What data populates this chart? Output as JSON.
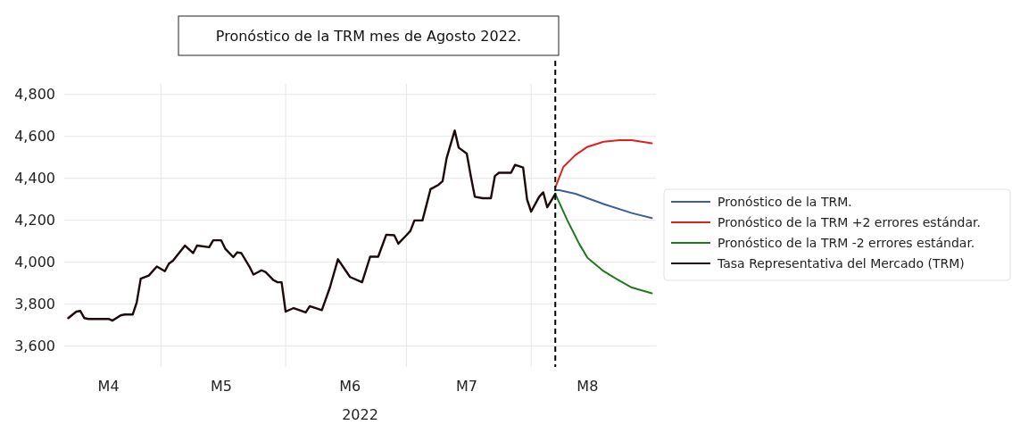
{
  "chart_data": {
    "type": "line",
    "title": "Pronóstico de la TRM mes de Agosto 2022.",
    "xlabel": "2022",
    "xlim": [
      "2022-04-07",
      "2022-09-01"
    ],
    "xticks": [
      {
        "value": "2022-04-18",
        "label": "M4"
      },
      {
        "value": "2022-05-01",
        "label": null
      },
      {
        "value": "2022-05-16",
        "label": "M5"
      },
      {
        "value": "2022-06-01",
        "label": null
      },
      {
        "value": "2022-06-17",
        "label": "M6"
      },
      {
        "value": "2022-07-01",
        "label": null
      },
      {
        "value": "2022-07-16",
        "label": "M7"
      },
      {
        "value": "2022-08-01",
        "label": null
      },
      {
        "value": "2022-08-15",
        "label": "M8"
      }
    ],
    "ylim": [
      3500,
      4850
    ],
    "yticks": [
      {
        "value": 3600,
        "label": "3,600"
      },
      {
        "value": 3800,
        "label": "3,800"
      },
      {
        "value": 4000,
        "label": "4,000"
      },
      {
        "value": 4200,
        "label": "4,200"
      },
      {
        "value": 4400,
        "label": "4,400"
      },
      {
        "value": 4600,
        "label": "4,600"
      },
      {
        "value": 4800,
        "label": "4,800"
      }
    ],
    "grid": true,
    "legend": "right",
    "line_style": "solid",
    "ref_lines": [
      {
        "axis": "x",
        "value": "2022-08-07",
        "color": "#000000",
        "line_style": "dashed"
      }
    ],
    "series": [
      {
        "name": "Pronóstico de la TRM.",
        "color": "#3a5fa0",
        "x": [
          "2022-08-07",
          "2022-08-08",
          "2022-08-12",
          "2022-08-19",
          "2022-08-26",
          "2022-08-31"
        ],
        "values": [
          4343,
          4343,
          4326,
          4277,
          4234,
          4210
        ]
      },
      {
        "name": "Pronóstico de la TRM +2 errores estándar.",
        "color": "#e0201e",
        "x": [
          "2022-08-07",
          "2022-08-09",
          "2022-08-12",
          "2022-08-15",
          "2022-08-19",
          "2022-08-23",
          "2022-08-26",
          "2022-08-31"
        ],
        "values": [
          4355,
          4454,
          4511,
          4550,
          4574,
          4582,
          4582,
          4567
        ]
      },
      {
        "name": "Pronóstico de la TRM -2 errores estándar.",
        "color": "#1e7a1e",
        "x": [
          "2022-08-07",
          "2022-08-10",
          "2022-08-13",
          "2022-08-15",
          "2022-08-19",
          "2022-08-22",
          "2022-08-26",
          "2022-08-31"
        ],
        "values": [
          4326,
          4199,
          4085,
          4021,
          3957,
          3922,
          3879,
          3851
        ]
      },
      {
        "name": "Tasa Representativa del Mercado (TRM)",
        "color": "#1a0a0a",
        "x": [
          "2022-04-08",
          "2022-04-10",
          "2022-04-11",
          "2022-04-12",
          "2022-04-13",
          "2022-04-18",
          "2022-04-19",
          "2022-04-21",
          "2022-04-22",
          "2022-04-24",
          "2022-04-25",
          "2022-04-26",
          "2022-04-28",
          "2022-04-30",
          "2022-05-02",
          "2022-05-03",
          "2022-05-04",
          "2022-05-07",
          "2022-05-09",
          "2022-05-10",
          "2022-05-13",
          "2022-05-14",
          "2022-05-16",
          "2022-05-17",
          "2022-05-19",
          "2022-05-20",
          "2022-05-21",
          "2022-05-23",
          "2022-05-24",
          "2022-05-26",
          "2022-05-27",
          "2022-05-29",
          "2022-05-30",
          "2022-05-31",
          "2022-06-01",
          "2022-06-03",
          "2022-06-06",
          "2022-06-07",
          "2022-06-10",
          "2022-06-12",
          "2022-06-14",
          "2022-06-17",
          "2022-06-20",
          "2022-06-22",
          "2022-06-24",
          "2022-06-26",
          "2022-06-28",
          "2022-06-29",
          "2022-07-01",
          "2022-07-02",
          "2022-07-03",
          "2022-07-05",
          "2022-07-07",
          "2022-07-09",
          "2022-07-10",
          "2022-07-11",
          "2022-07-13",
          "2022-07-14",
          "2022-07-16",
          "2022-07-17",
          "2022-07-18",
          "2022-07-20",
          "2022-07-22",
          "2022-07-23",
          "2022-07-24",
          "2022-07-27",
          "2022-07-28",
          "2022-07-30",
          "2022-07-31",
          "2022-08-01",
          "2022-08-03",
          "2022-08-04",
          "2022-08-05",
          "2022-08-07"
        ],
        "values": [
          3733,
          3764,
          3767,
          3733,
          3729,
          3729,
          3721,
          3746,
          3750,
          3750,
          3807,
          3921,
          3936,
          3979,
          3957,
          3993,
          4007,
          4079,
          4043,
          4079,
          4071,
          4104,
          4104,
          4064,
          4024,
          4047,
          4043,
          3979,
          3941,
          3961,
          3953,
          3914,
          3904,
          3904,
          3764,
          3781,
          3760,
          3790,
          3771,
          3879,
          4014,
          3929,
          3904,
          4026,
          4026,
          4131,
          4128,
          4088,
          4128,
          4149,
          4199,
          4199,
          4348,
          4369,
          4386,
          4496,
          4628,
          4546,
          4518,
          4411,
          4312,
          4305,
          4305,
          4411,
          4426,
          4426,
          4464,
          4451,
          4298,
          4241,
          4312,
          4333,
          4262,
          4326
        ]
      }
    ]
  }
}
